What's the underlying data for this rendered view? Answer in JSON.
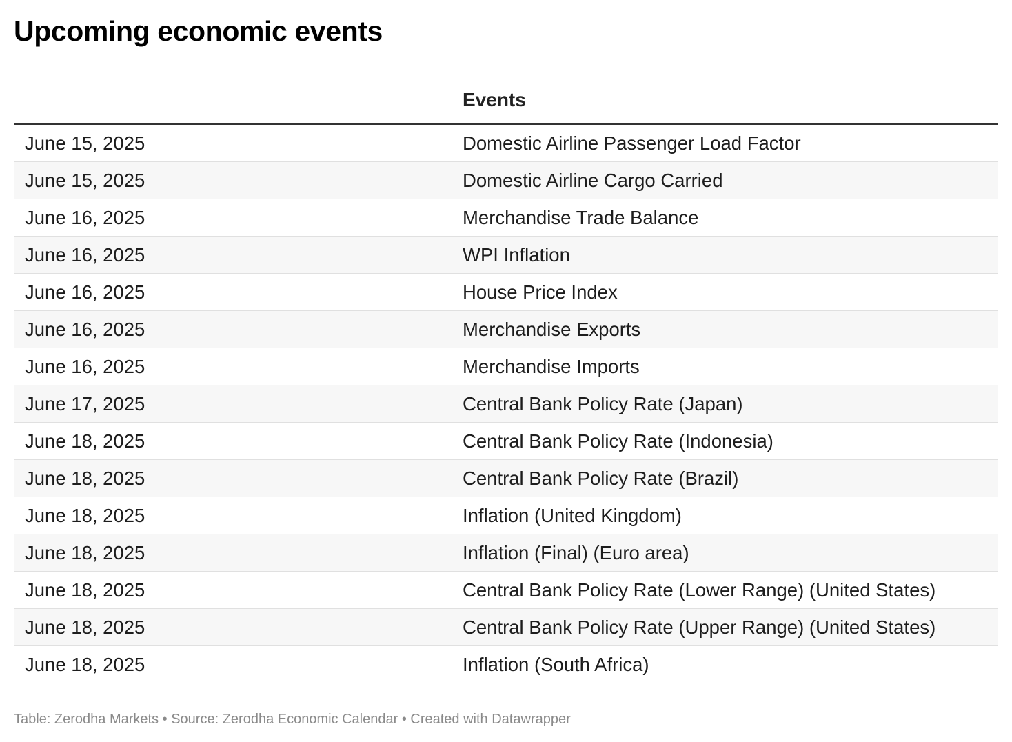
{
  "title": "Upcoming economic events",
  "table": {
    "headers": [
      "",
      "Events"
    ],
    "rows": [
      {
        "date": "June 15, 2025",
        "event": "Domestic Airline Passenger Load Factor"
      },
      {
        "date": "June 15, 2025",
        "event": "Domestic Airline Cargo Carried"
      },
      {
        "date": "June 16, 2025",
        "event": "Merchandise Trade Balance"
      },
      {
        "date": "June 16, 2025",
        "event": "WPI Inflation"
      },
      {
        "date": "June 16, 2025",
        "event": "House Price Index"
      },
      {
        "date": "June 16, 2025",
        "event": "Merchandise Exports"
      },
      {
        "date": "June 16, 2025",
        "event": "Merchandise Imports"
      },
      {
        "date": "June 17, 2025",
        "event": "Central Bank Policy Rate (Japan)"
      },
      {
        "date": "June 18, 2025",
        "event": "Central Bank Policy Rate (Indonesia)"
      },
      {
        "date": "June 18, 2025",
        "event": "Central Bank Policy Rate (Brazil)"
      },
      {
        "date": "June 18, 2025",
        "event": "Inflation (United Kingdom)"
      },
      {
        "date": "June 18, 2025",
        "event": "Inflation (Final) (Euro area)"
      },
      {
        "date": "June 18, 2025",
        "event": "Central Bank Policy Rate (Lower Range) (United States)"
      },
      {
        "date": "June 18, 2025",
        "event": "Central Bank Policy Rate (Upper Range) (United States)"
      },
      {
        "date": "June 18, 2025",
        "event": "Inflation (South Africa)"
      }
    ]
  },
  "footer": "Table: Zerodha Markets • Source: Zerodha Economic Calendar • Created with Datawrapper"
}
